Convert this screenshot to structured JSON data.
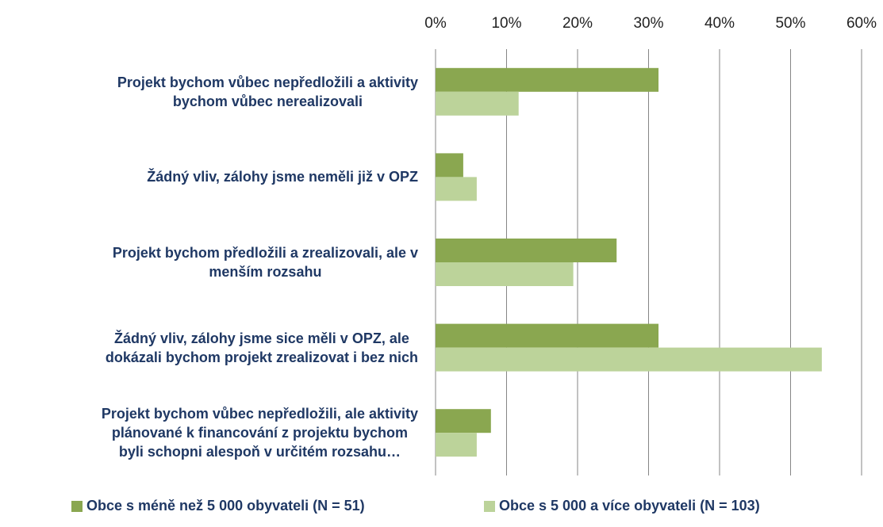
{
  "chart_data": {
    "type": "bar",
    "orientation": "horizontal",
    "categories": [
      "Projekt bychom vůbec nepředložili a aktivity\nbychom vůbec nerealizovali",
      "Žádný vliv, zálohy jsme neměli již v OPZ",
      "Projekt bychom předložili a zrealizovali, ale v\nmenším rozsahu",
      "Žádný vliv, zálohy jsme sice měli v OPZ, ale\ndokázali bychom projekt zrealizovat i bez nich",
      "Projekt bychom vůbec nepředložili, ale aktivity\nplánované k financování z projektu bychom\nbyli schopni alespoň v určitém rozsahu…"
    ],
    "series": [
      {
        "name": "Obce s méně než 5 000 obyvateli (N = 51)",
        "color": "#8aa750",
        "values": [
          31.4,
          3.9,
          25.5,
          31.4,
          7.8
        ]
      },
      {
        "name": "Obce s 5 000 a více obyvateli (N = 103)",
        "color": "#bcd39a",
        "values": [
          11.7,
          5.8,
          19.4,
          54.4,
          5.8
        ]
      }
    ],
    "xlim": [
      0,
      60
    ],
    "xticks": [
      {
        "value": 0,
        "label": "0%"
      },
      {
        "value": 10,
        "label": "10%"
      },
      {
        "value": 20,
        "label": "20%"
      },
      {
        "value": 30,
        "label": "30%"
      },
      {
        "value": 40,
        "label": "40%"
      },
      {
        "value": 50,
        "label": "50%"
      },
      {
        "value": 60,
        "label": "60%"
      }
    ],
    "grid": true
  }
}
